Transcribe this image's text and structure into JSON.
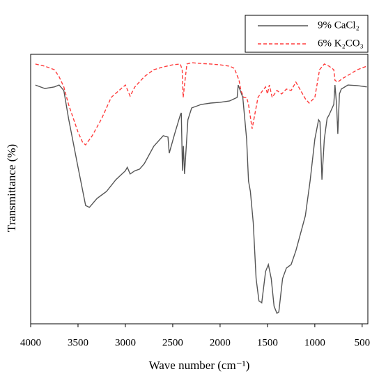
{
  "chart_data": {
    "type": "line",
    "xlabel": "Wave number (cm⁻¹)",
    "ylabel": "Transmittance (%)",
    "xlim": [
      4000,
      440
    ],
    "ylim": [
      0,
      100
    ],
    "xticks": [
      4000,
      3500,
      3000,
      2500,
      2000,
      1500,
      1000,
      500
    ],
    "legend": "top-right",
    "series": [
      {
        "name": "9% CaCl₂",
        "color": "#555555",
        "linestyle": "solid",
        "x": [
          3950,
          3850,
          3750,
          3700,
          3650,
          3600,
          3500,
          3420,
          3380,
          3300,
          3200,
          3100,
          3000,
          2980,
          2950,
          2900,
          2850,
          2800,
          2700,
          2600,
          2550,
          2537,
          2480,
          2420,
          2410,
          2397,
          2388,
          2375,
          2340,
          2300,
          2200,
          2100,
          2000,
          1900,
          1820,
          1809,
          1760,
          1720,
          1700,
          1680,
          1650,
          1620,
          1590,
          1560,
          1520,
          1490,
          1460,
          1430,
          1400,
          1380,
          1340,
          1300,
          1250,
          1200,
          1100,
          1050,
          1000,
          960,
          945,
          925,
          900,
          870,
          850,
          800,
          787,
          770,
          757,
          740,
          720,
          650,
          550,
          450
        ],
        "values": [
          88.6,
          87.3,
          87.9,
          88.6,
          86.6,
          76.2,
          58.1,
          43.9,
          43.2,
          46.5,
          49.1,
          53.5,
          56.8,
          58.1,
          55.6,
          56.8,
          57.4,
          59.4,
          65.9,
          69.8,
          69.3,
          63.3,
          70.5,
          77.5,
          78.3,
          56.8,
          66.0,
          55.6,
          75.7,
          80.1,
          81.4,
          81.9,
          82.2,
          82.7,
          84.0,
          88.6,
          84.0,
          68.5,
          53.0,
          49.1,
          37.5,
          16.8,
          8.5,
          7.8,
          19.4,
          22.0,
          16.8,
          6.5,
          3.9,
          4.4,
          16.8,
          20.7,
          22.0,
          27.1,
          40.1,
          53.0,
          68.5,
          75.7,
          74.9,
          53.5,
          68.5,
          76.2,
          77.5,
          81.4,
          88.6,
          81.4,
          70.5,
          85.3,
          87.1,
          88.6,
          88.4,
          87.9
        ]
      },
      {
        "name": "6% K₂CO₃",
        "color": "#ff3b3b",
        "linestyle": "dashed",
        "x": [
          3950,
          3850,
          3750,
          3700,
          3650,
          3600,
          3500,
          3450,
          3420,
          3350,
          3250,
          3150,
          3050,
          3000,
          2950,
          2900,
          2800,
          2700,
          2600,
          2500,
          2420,
          2400,
          2390,
          2370,
          2350,
          2300,
          2200,
          2100,
          2000,
          1900,
          1850,
          1800,
          1780,
          1750,
          1720,
          1700,
          1662,
          1600,
          1550,
          1520,
          1500,
          1480,
          1450,
          1400,
          1350,
          1300,
          1250,
          1200,
          1150,
          1100,
          1060,
          1000,
          950,
          900,
          850,
          800,
          787,
          760,
          700,
          650,
          550,
          450
        ],
        "values": [
          96.4,
          95.6,
          94.3,
          91.7,
          87.9,
          81.4,
          71.1,
          67.2,
          66.4,
          69.8,
          76.2,
          84.0,
          87.1,
          88.6,
          84.5,
          87.9,
          91.7,
          94.3,
          95.3,
          96.1,
          96.4,
          94.3,
          84.0,
          90.4,
          96.4,
          96.9,
          96.6,
          96.4,
          96.1,
          95.6,
          94.8,
          90.4,
          86.6,
          84.0,
          84.0,
          81.4,
          72.4,
          84.0,
          86.6,
          87.9,
          85.3,
          88.6,
          84.0,
          86.6,
          85.3,
          87.1,
          86.6,
          89.7,
          86.6,
          83.5,
          81.9,
          84.0,
          94.3,
          96.4,
          95.6,
          94.3,
          90.4,
          89.7,
          91.2,
          92.2,
          94.3,
          95.6
        ]
      }
    ]
  }
}
